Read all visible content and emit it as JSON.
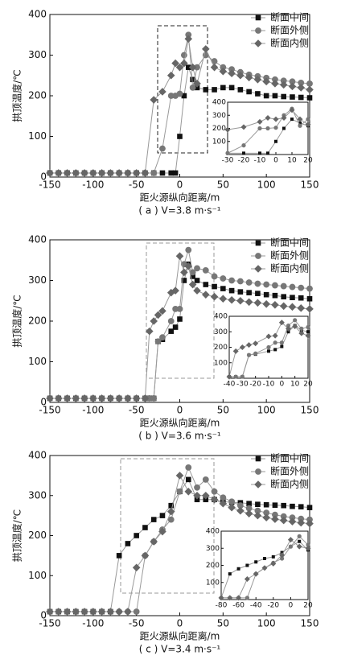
{
  "chart_data": [
    {
      "type": "line",
      "xlabel": "距火源纵向距离/m",
      "ylabel": "拱顶温度/℃",
      "caption": "( a ) V=3.8 m·s⁻¹",
      "legend": "upper right",
      "x": [
        -150,
        -140,
        -130,
        -120,
        -110,
        -100,
        -90,
        -80,
        -70,
        -60,
        -50,
        -40,
        -30,
        -20,
        -10,
        -5,
        0,
        5,
        10,
        15,
        20,
        30,
        40,
        50,
        60,
        70,
        80,
        90,
        100,
        110,
        120,
        130,
        140,
        150
      ],
      "series": [
        {
          "name": "断面中间",
          "color": "#111111",
          "marker": "square",
          "values": [
            10,
            10,
            10,
            10,
            10,
            10,
            10,
            10,
            10,
            10,
            10,
            10,
            10,
            10,
            10,
            10,
            100,
            200,
            270,
            240,
            220,
            215,
            215,
            220,
            220,
            215,
            210,
            205,
            200,
            200,
            198,
            197,
            196,
            195
          ]
        },
        {
          "name": "断面外侧",
          "color": "#777777",
          "marker": "circle",
          "values": [
            10,
            10,
            10,
            10,
            10,
            10,
            10,
            10,
            10,
            10,
            10,
            10,
            10,
            70,
            200,
            200,
            205,
            300,
            350,
            220,
            270,
            300,
            285,
            270,
            265,
            258,
            252,
            248,
            244,
            240,
            237,
            235,
            232,
            230
          ]
        },
        {
          "name": "断面内侧",
          "color": "#666666",
          "marker": "diamond",
          "values": [
            10,
            10,
            10,
            10,
            10,
            10,
            10,
            10,
            10,
            10,
            10,
            10,
            190,
            210,
            250,
            280,
            270,
            280,
            340,
            270,
            230,
            315,
            270,
            260,
            255,
            250,
            245,
            240,
            235,
            230,
            227,
            223,
            220,
            215
          ]
        }
      ],
      "xlim": [
        -150,
        150
      ],
      "ylim": [
        0,
        400
      ],
      "xticks": [
        -150,
        -100,
        -50,
        0,
        50,
        100,
        150
      ],
      "yticks": [
        0,
        100,
        200,
        300,
        400
      ],
      "inset": {
        "xlim": [
          -30,
          20
        ],
        "ylim": [
          0,
          400
        ],
        "xticks": [
          -30,
          -20,
          -10,
          0,
          10,
          20
        ],
        "yticks": [
          100,
          200,
          300,
          400
        ]
      }
    },
    {
      "type": "line",
      "xlabel": "距火源纵向距离/m",
      "ylabel": "拱顶温度/℃",
      "caption": "( b ) V=3.6 m·s⁻¹",
      "legend": "upper right",
      "x": [
        -150,
        -140,
        -130,
        -120,
        -110,
        -100,
        -90,
        -80,
        -70,
        -60,
        -50,
        -40,
        -35,
        -30,
        -25,
        -20,
        -10,
        -5,
        0,
        5,
        10,
        15,
        20,
        30,
        40,
        50,
        60,
        70,
        80,
        90,
        100,
        110,
        120,
        130,
        140,
        150
      ],
      "series": [
        {
          "name": "断面中间",
          "color": "#111111",
          "marker": "square",
          "values": [
            10,
            10,
            10,
            10,
            10,
            10,
            10,
            10,
            10,
            10,
            10,
            10,
            10,
            10,
            150,
            155,
            175,
            185,
            205,
            300,
            340,
            310,
            300,
            290,
            285,
            280,
            275,
            272,
            270,
            268,
            265,
            263,
            260,
            258,
            257,
            255
          ]
        },
        {
          "name": "断面外侧",
          "color": "#777777",
          "marker": "circle",
          "values": [
            10,
            10,
            10,
            10,
            10,
            10,
            10,
            10,
            10,
            10,
            10,
            10,
            10,
            10,
            150,
            160,
            200,
            230,
            230,
            340,
            375,
            320,
            330,
            325,
            310,
            305,
            300,
            298,
            295,
            292,
            290,
            288,
            286,
            284,
            282,
            280
          ]
        },
        {
          "name": "断面内侧",
          "color": "#666666",
          "marker": "diamond",
          "values": [
            10,
            10,
            10,
            10,
            10,
            10,
            10,
            10,
            10,
            10,
            10,
            10,
            175,
            200,
            215,
            225,
            270,
            275,
            360,
            320,
            335,
            290,
            275,
            265,
            260,
            255,
            252,
            250,
            247,
            245,
            242,
            240,
            237,
            235,
            232,
            230
          ]
        }
      ],
      "xlim": [
        -150,
        150
      ],
      "ylim": [
        0,
        400
      ],
      "xticks": [
        -150,
        -100,
        -50,
        0,
        50,
        100,
        150
      ],
      "yticks": [
        0,
        100,
        200,
        300,
        400
      ],
      "inset": {
        "xlim": [
          -40,
          20
        ],
        "ylim": [
          0,
          400
        ],
        "xticks": [
          -40,
          -30,
          -20,
          -10,
          0,
          10,
          20
        ],
        "yticks": [
          100,
          200,
          300,
          400
        ]
      }
    },
    {
      "type": "line",
      "xlabel": "距火源纵向距离/m",
      "ylabel": "拱顶温度/℃",
      "caption": "( c ) V=3.4 m·s⁻¹",
      "legend": "upper right",
      "x": [
        -150,
        -140,
        -130,
        -120,
        -110,
        -100,
        -90,
        -80,
        -70,
        -60,
        -50,
        -40,
        -30,
        -20,
        -10,
        0,
        10,
        20,
        30,
        40,
        50,
        60,
        70,
        80,
        90,
        100,
        110,
        120,
        130,
        140,
        150
      ],
      "series": [
        {
          "name": "断面中间",
          "color": "#111111",
          "marker": "square",
          "values": [
            10,
            10,
            10,
            10,
            10,
            10,
            10,
            10,
            150,
            180,
            200,
            220,
            240,
            250,
            275,
            310,
            340,
            290,
            290,
            290,
            285,
            283,
            282,
            280,
            278,
            277,
            276,
            275,
            273,
            272,
            270
          ]
        },
        {
          "name": "断面外侧",
          "color": "#777777",
          "marker": "circle",
          "values": [
            10,
            10,
            10,
            10,
            10,
            10,
            10,
            10,
            10,
            10,
            10,
            150,
            185,
            215,
            240,
            310,
            370,
            320,
            340,
            310,
            295,
            285,
            275,
            268,
            262,
            257,
            252,
            248,
            245,
            242,
            240
          ]
        },
        {
          "name": "断面内侧",
          "color": "#666666",
          "marker": "diamond",
          "values": [
            10,
            10,
            10,
            10,
            10,
            10,
            10,
            10,
            10,
            10,
            120,
            150,
            185,
            210,
            260,
            350,
            310,
            300,
            300,
            290,
            280,
            270,
            262,
            255,
            250,
            245,
            241,
            238,
            235,
            232,
            230
          ]
        }
      ],
      "xlim": [
        -150,
        150
      ],
      "ylim": [
        0,
        400
      ],
      "xticks": [
        -150,
        -100,
        -50,
        0,
        50,
        100,
        150
      ],
      "yticks": [
        0,
        100,
        200,
        300,
        400
      ],
      "inset": {
        "xlim": [
          -80,
          20
        ],
        "ylim": [
          0,
          400
        ],
        "xticks": [
          -80,
          -60,
          -40,
          -20,
          0,
          20
        ],
        "yticks": [
          100,
          200,
          300,
          400
        ]
      }
    }
  ]
}
